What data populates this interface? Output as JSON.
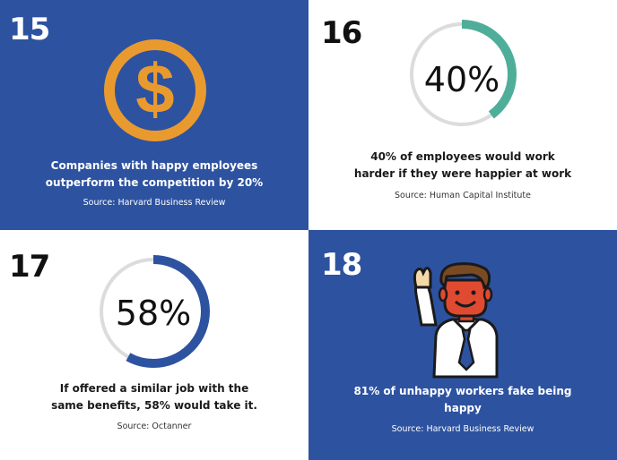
{
  "tiles": [
    {
      "number": "15",
      "caption_line1": "Companies with happy employees",
      "caption_line2": "outperform the competition by 20%",
      "source": "Source: Harvard Business Review",
      "icon": "dollar-coin-icon"
    },
    {
      "number": "16",
      "percent_label": "40%",
      "percent_value": 40,
      "caption_line1": "40% of employees would work",
      "caption_line2": "harder if they were happier at work",
      "source": "Source: Human Capital Institute",
      "ring_color": "#4fae99"
    },
    {
      "number": "17",
      "percent_label": "58%",
      "percent_value": 58,
      "caption_line1": "If offered a similar job with the",
      "caption_line2": "same benefits, 58% would take it.",
      "source": "Source: Octanner",
      "ring_color": "#2d52a0"
    },
    {
      "number": "18",
      "caption_line1": "81% of unhappy workers fake being",
      "caption_line2": "happy",
      "source": "Source: Harvard Business Review",
      "icon": "waving-businessman-icon"
    }
  ],
  "colors": {
    "tile_blue": "#2d52a0",
    "coin_orange": "#e99a2f",
    "ring_track": "#dcdcdc"
  }
}
